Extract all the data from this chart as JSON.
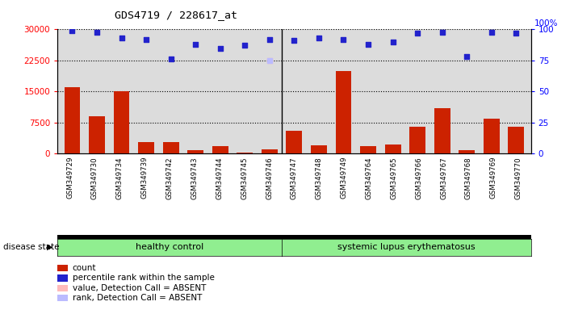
{
  "title": "GDS4719 / 228617_at",
  "samples": [
    "GSM349729",
    "GSM349730",
    "GSM349734",
    "GSM349739",
    "GSM349742",
    "GSM349743",
    "GSM349744",
    "GSM349745",
    "GSM349746",
    "GSM349747",
    "GSM349748",
    "GSM349749",
    "GSM349764",
    "GSM349765",
    "GSM349766",
    "GSM349767",
    "GSM349768",
    "GSM349769",
    "GSM349770"
  ],
  "counts": [
    16000,
    9000,
    15000,
    2700,
    2800,
    800,
    1700,
    200,
    1000,
    5500,
    2000,
    20000,
    1800,
    2100,
    6500,
    11000,
    800,
    8500,
    6500
  ],
  "percentile_ranks": [
    99,
    98,
    93,
    92,
    76,
    88,
    85,
    87,
    92,
    91,
    93,
    92,
    88,
    90,
    97,
    98,
    78,
    98,
    97
  ],
  "absent_value_idx": 8,
  "absent_value": 22500,
  "absent_rank": 75,
  "healthy_count": 9,
  "lupus_count": 10,
  "ylim_left": [
    0,
    30000
  ],
  "ylim_right": [
    0,
    100
  ],
  "yticks_left": [
    0,
    7500,
    15000,
    22500,
    30000
  ],
  "yticks_right": [
    0,
    25,
    50,
    75,
    100
  ],
  "bar_color": "#CC2200",
  "dot_color": "#2222CC",
  "absent_val_color": "#FFBBBB",
  "absent_rank_color": "#BBBBFF",
  "healthy_label": "healthy control",
  "lupus_label": "systemic lupus erythematosus",
  "disease_label": "disease state",
  "legend_items": [
    "count",
    "percentile rank within the sample",
    "value, Detection Call = ABSENT",
    "rank, Detection Call = ABSENT"
  ]
}
